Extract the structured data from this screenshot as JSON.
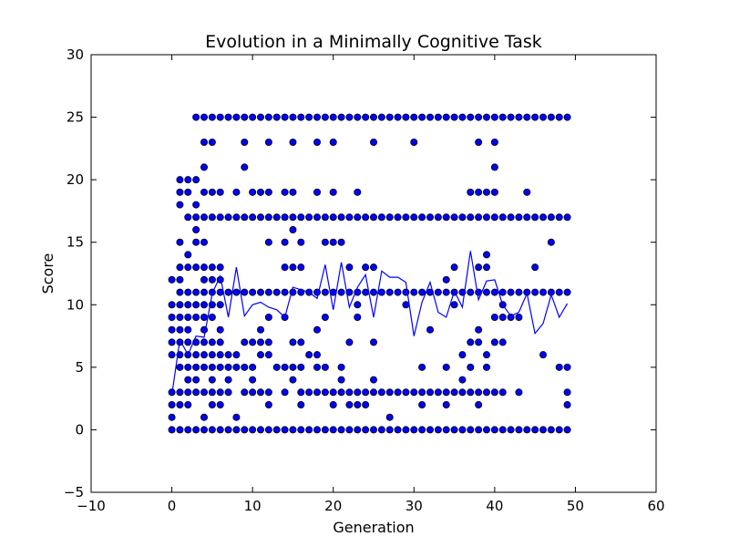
{
  "chart_data": {
    "type": "scatter",
    "title": "Evolution in a Minimally Cognitive Task",
    "xlabel": "Generation",
    "ylabel": "Score",
    "xlim": [
      -10,
      60
    ],
    "ylim": [
      -5,
      30
    ],
    "xticks": [
      -10,
      0,
      10,
      20,
      30,
      40,
      50,
      60
    ],
    "yticks": [
      -5,
      0,
      5,
      10,
      15,
      20,
      25,
      30
    ],
    "xtick_labels": [
      "−10",
      "0",
      "10",
      "20",
      "30",
      "40",
      "50",
      "60"
    ],
    "ytick_labels": [
      "−5",
      "0",
      "5",
      "10",
      "15",
      "20",
      "25",
      "30"
    ],
    "grid": false,
    "legend": "none",
    "colors": {
      "points": "#0000ff",
      "edge": "#000000",
      "line": "#0000ff"
    },
    "scatter_by_generation": [
      {
        "x": 0,
        "y": [
          0,
          1,
          2,
          3,
          6,
          7,
          8,
          9,
          10,
          12
        ]
      },
      {
        "x": 1,
        "y": [
          0,
          2,
          3,
          5,
          6,
          7,
          8,
          9,
          10,
          11,
          12,
          13,
          15,
          18,
          19,
          20
        ]
      },
      {
        "x": 2,
        "y": [
          0,
          2,
          3,
          4,
          5,
          6,
          7,
          8,
          9,
          10,
          11,
          13,
          14,
          17,
          19,
          20
        ]
      },
      {
        "x": 3,
        "y": [
          0,
          3,
          4,
          5,
          6,
          7,
          9,
          10,
          11,
          13,
          15,
          16,
          17,
          18,
          20,
          25
        ]
      },
      {
        "x": 4,
        "y": [
          0,
          1,
          3,
          5,
          6,
          7,
          8,
          9,
          10,
          11,
          12,
          13,
          15,
          17,
          19,
          21,
          23,
          25
        ]
      },
      {
        "x": 5,
        "y": [
          0,
          2,
          3,
          4,
          5,
          6,
          7,
          9,
          10,
          11,
          12,
          13,
          17,
          19,
          23,
          25
        ]
      },
      {
        "x": 6,
        "y": [
          0,
          2,
          3,
          5,
          6,
          7,
          8,
          10,
          11,
          12,
          13,
          17,
          19,
          25
        ]
      },
      {
        "x": 7,
        "y": [
          0,
          3,
          4,
          5,
          6,
          11,
          17,
          25
        ]
      },
      {
        "x": 8,
        "y": [
          0,
          1,
          5,
          6,
          11,
          17,
          19,
          25
        ]
      },
      {
        "x": 9,
        "y": [
          0,
          3,
          5,
          7,
          11,
          17,
          21,
          23,
          25
        ]
      },
      {
        "x": 10,
        "y": [
          0,
          3,
          4,
          5,
          7,
          11,
          17,
          19,
          25
        ]
      },
      {
        "x": 11,
        "y": [
          0,
          3,
          6,
          7,
          8,
          11,
          17,
          19,
          25
        ]
      },
      {
        "x": 12,
        "y": [
          0,
          2,
          3,
          6,
          7,
          9,
          11,
          15,
          17,
          19,
          23,
          25
        ]
      },
      {
        "x": 13,
        "y": [
          0,
          5,
          11,
          17,
          25
        ]
      },
      {
        "x": 14,
        "y": [
          0,
          3,
          5,
          9,
          11,
          13,
          15,
          17,
          19,
          25
        ]
      },
      {
        "x": 15,
        "y": [
          0,
          4,
          5,
          7,
          11,
          13,
          16,
          17,
          19,
          23,
          25
        ]
      },
      {
        "x": 16,
        "y": [
          0,
          2,
          3,
          5,
          7,
          11,
          13,
          15,
          17,
          25
        ]
      },
      {
        "x": 17,
        "y": [
          0,
          3,
          6,
          11,
          17,
          25
        ]
      },
      {
        "x": 18,
        "y": [
          0,
          3,
          5,
          6,
          8,
          11,
          17,
          19,
          23,
          25
        ]
      },
      {
        "x": 19,
        "y": [
          0,
          3,
          5,
          9,
          11,
          15,
          17,
          25
        ]
      },
      {
        "x": 20,
        "y": [
          0,
          2,
          3,
          11,
          15,
          17,
          19,
          23,
          25
        ]
      },
      {
        "x": 21,
        "y": [
          0,
          3,
          4,
          5,
          11,
          15,
          17,
          25
        ]
      },
      {
        "x": 22,
        "y": [
          0,
          2,
          3,
          7,
          11,
          13,
          17,
          25
        ]
      },
      {
        "x": 23,
        "y": [
          0,
          2,
          3,
          9,
          10,
          11,
          17,
          19,
          25
        ]
      },
      {
        "x": 24,
        "y": [
          0,
          2,
          3,
          11,
          13,
          17,
          25
        ]
      },
      {
        "x": 25,
        "y": [
          0,
          3,
          4,
          7,
          11,
          13,
          17,
          23,
          25
        ]
      },
      {
        "x": 26,
        "y": [
          0,
          3,
          11,
          17,
          25
        ]
      },
      {
        "x": 27,
        "y": [
          0,
          1,
          3,
          11,
          17,
          25
        ]
      },
      {
        "x": 28,
        "y": [
          0,
          3,
          11,
          17,
          25
        ]
      },
      {
        "x": 29,
        "y": [
          0,
          3,
          10,
          11,
          17,
          25
        ]
      },
      {
        "x": 30,
        "y": [
          0,
          3,
          11,
          17,
          23,
          25
        ]
      },
      {
        "x": 31,
        "y": [
          0,
          2,
          3,
          5,
          11,
          17,
          25
        ]
      },
      {
        "x": 32,
        "y": [
          0,
          3,
          8,
          11,
          17,
          25
        ]
      },
      {
        "x": 33,
        "y": [
          0,
          3,
          11,
          17,
          25
        ]
      },
      {
        "x": 34,
        "y": [
          0,
          2,
          3,
          5,
          11,
          12,
          17,
          25
        ]
      },
      {
        "x": 35,
        "y": [
          0,
          3,
          10,
          11,
          13,
          17,
          25
        ]
      },
      {
        "x": 36,
        "y": [
          0,
          3,
          4,
          6,
          11,
          17,
          25
        ]
      },
      {
        "x": 37,
        "y": [
          0,
          3,
          5,
          7,
          11,
          17,
          19,
          25
        ]
      },
      {
        "x": 38,
        "y": [
          0,
          2,
          3,
          7,
          8,
          11,
          13,
          17,
          19,
          23,
          25
        ]
      },
      {
        "x": 39,
        "y": [
          0,
          3,
          5,
          6,
          11,
          13,
          14,
          17,
          19,
          25
        ]
      },
      {
        "x": 40,
        "y": [
          0,
          3,
          7,
          9,
          11,
          17,
          19,
          21,
          23,
          25
        ]
      },
      {
        "x": 41,
        "y": [
          0,
          3,
          7,
          9,
          10,
          11,
          17,
          25
        ]
      },
      {
        "x": 42,
        "y": [
          0,
          9,
          11,
          17,
          25
        ]
      },
      {
        "x": 43,
        "y": [
          0,
          3,
          9,
          11,
          17,
          25
        ]
      },
      {
        "x": 44,
        "y": [
          0,
          11,
          17,
          19,
          25
        ]
      },
      {
        "x": 45,
        "y": [
          0,
          11,
          13,
          17,
          25
        ]
      },
      {
        "x": 46,
        "y": [
          0,
          6,
          11,
          17,
          25
        ]
      },
      {
        "x": 47,
        "y": [
          0,
          11,
          15,
          17,
          25
        ]
      },
      {
        "x": 48,
        "y": [
          0,
          5,
          11,
          17,
          25
        ]
      },
      {
        "x": 49,
        "y": [
          0,
          2,
          3,
          5,
          11,
          17,
          25
        ]
      }
    ],
    "mean_line": {
      "x": [
        0,
        1,
        2,
        3,
        4,
        5,
        6,
        7,
        8,
        9,
        10,
        11,
        12,
        13,
        14,
        15,
        16,
        17,
        18,
        19,
        20,
        21,
        22,
        23,
        24,
        25,
        26,
        27,
        28,
        29,
        30,
        31,
        32,
        33,
        34,
        35,
        36,
        37,
        38,
        39,
        40,
        41,
        42,
        43,
        44,
        45,
        46,
        47,
        48,
        49
      ],
      "y": [
        2.8,
        7.2,
        6.0,
        7.5,
        7.4,
        10.9,
        12.3,
        9.0,
        13.0,
        9.1,
        10.0,
        10.2,
        9.8,
        9.6,
        9.0,
        11.4,
        11.2,
        11.0,
        10.5,
        13.2,
        9.6,
        13.4,
        9.8,
        11.4,
        12.4,
        9.0,
        12.7,
        12.2,
        12.2,
        11.8,
        7.5,
        10.2,
        11.8,
        9.4,
        9.0,
        11.1,
        9.8,
        14.3,
        10.4,
        11.9,
        12.0,
        10.0,
        9.1,
        9.4,
        10.9,
        7.7,
        8.5,
        10.8,
        9.0,
        10.1
      ]
    }
  }
}
